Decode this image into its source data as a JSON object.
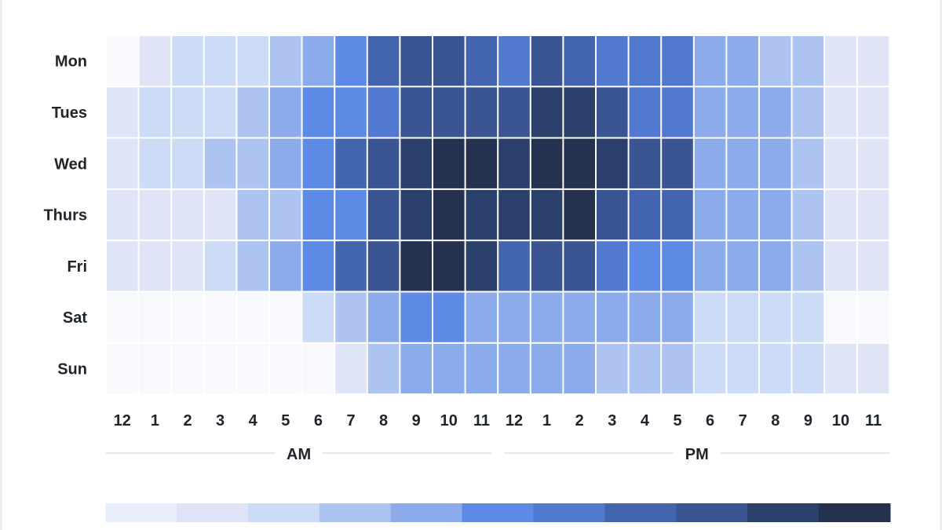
{
  "chart_data": {
    "type": "heatmap",
    "days": [
      "Mon",
      "Tues",
      "Wed",
      "Thurs",
      "Fri",
      "Sat",
      "Sun"
    ],
    "hours": [
      "12",
      "1",
      "2",
      "3",
      "4",
      "5",
      "6",
      "7",
      "8",
      "9",
      "10",
      "11",
      "12",
      "1",
      "2",
      "3",
      "4",
      "5",
      "6",
      "7",
      "8",
      "9",
      "10",
      "11"
    ],
    "periods": [
      "AM",
      "PM"
    ],
    "values": [
      [
        0,
        1,
        2,
        2,
        2,
        3,
        4,
        5,
        7,
        8,
        8,
        7,
        6,
        8,
        7,
        6,
        6,
        6,
        4,
        4,
        3,
        3,
        1,
        1
      ],
      [
        1,
        2,
        2,
        2,
        3,
        4,
        5,
        5,
        6,
        8,
        8,
        8,
        8,
        9,
        9,
        8,
        6,
        6,
        4,
        4,
        4,
        3,
        1,
        1
      ],
      [
        1,
        2,
        2,
        3,
        3,
        4,
        5,
        7,
        8,
        9,
        10,
        10,
        9,
        10,
        10,
        9,
        8,
        8,
        4,
        4,
        4,
        3,
        1,
        1
      ],
      [
        1,
        1,
        1,
        1,
        3,
        3,
        5,
        5,
        8,
        9,
        10,
        9,
        9,
        9,
        10,
        8,
        7,
        7,
        4,
        4,
        4,
        3,
        1,
        1
      ],
      [
        1,
        1,
        1,
        2,
        3,
        4,
        5,
        7,
        8,
        10,
        10,
        9,
        7,
        8,
        8,
        6,
        5,
        5,
        4,
        4,
        4,
        3,
        1,
        1
      ],
      [
        0,
        0,
        0,
        0,
        0,
        0,
        2,
        3,
        4,
        5,
        5,
        4,
        4,
        4,
        4,
        4,
        4,
        4,
        2,
        2,
        2,
        2,
        0,
        0
      ],
      [
        0,
        0,
        0,
        0,
        0,
        0,
        0,
        1,
        3,
        4,
        4,
        4,
        4,
        4,
        4,
        3,
        3,
        3,
        2,
        2,
        2,
        2,
        1,
        1
      ]
    ],
    "scale_colors": [
      "#eaf0fb",
      "#dfe4f6",
      "#cddcf6",
      "#adc4f0",
      "#8cabea",
      "#5c8ae4",
      "#5079cf",
      "#4365ae",
      "#3b5593",
      "#2b416b",
      "#24314f"
    ],
    "grid": true,
    "legend": "bottom"
  }
}
